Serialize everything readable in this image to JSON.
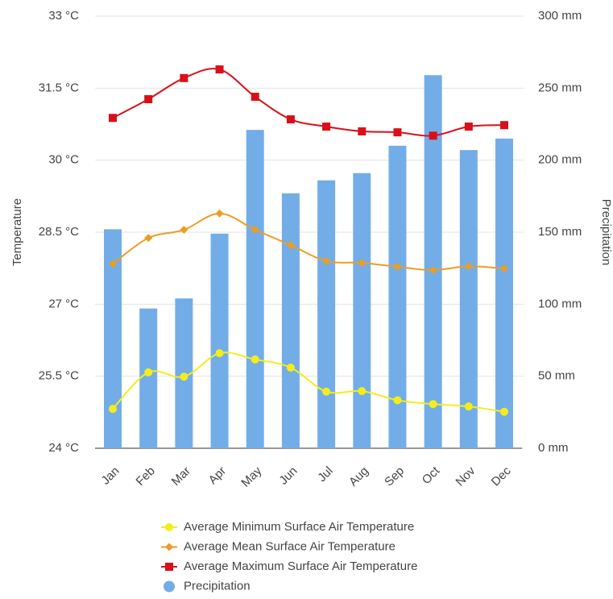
{
  "chart_data": {
    "type": "combo",
    "categories": [
      "Jan",
      "Feb",
      "Mar",
      "Apr",
      "May",
      "Jun",
      "Jul",
      "Aug",
      "Sep",
      "Oct",
      "Nov",
      "Dec"
    ],
    "y_label": "Temperature",
    "y2_label": "Precipitation",
    "ylim": [
      24,
      33
    ],
    "yticks": [
      {
        "value": 24,
        "label": "24 °C"
      },
      {
        "value": 25.5,
        "label": "25.5 °C"
      },
      {
        "value": 27,
        "label": "27 °C"
      },
      {
        "value": 28.5,
        "label": "28.5 °C"
      },
      {
        "value": 30,
        "label": "30 °C"
      },
      {
        "value": 31.5,
        "label": "31.5 °C"
      },
      {
        "value": 33,
        "label": "33 °C"
      }
    ],
    "y2lim": [
      0,
      300
    ],
    "y2ticks": [
      {
        "value": 0,
        "label": "0 mm"
      },
      {
        "value": 50,
        "label": "50 mm"
      },
      {
        "value": 100,
        "label": "100 mm"
      },
      {
        "value": 150,
        "label": "150 mm"
      },
      {
        "value": 200,
        "label": "200 mm"
      },
      {
        "value": 250,
        "label": "250 mm"
      },
      {
        "value": 300,
        "label": "300 mm"
      }
    ],
    "grid": true,
    "series": [
      {
        "name": "Average Minimum Surface Air Temperature",
        "type": "line",
        "marker": "circle",
        "color": "#f5ec1c",
        "values": [
          24.82,
          25.58,
          25.49,
          25.98,
          25.85,
          25.68,
          25.18,
          25.19,
          25.0,
          24.92,
          24.87,
          24.76
        ]
      },
      {
        "name": "Average Mean Surface Air Temperature",
        "type": "line",
        "marker": "diamond",
        "color": "#eb9d24",
        "values": [
          27.84,
          28.38,
          28.55,
          28.89,
          28.55,
          28.23,
          27.9,
          27.86,
          27.78,
          27.71,
          27.79,
          27.74
        ]
      },
      {
        "name": "Average Maximum Surface Air Temperature",
        "type": "line",
        "marker": "square",
        "color": "#d9101a",
        "values": [
          30.88,
          31.27,
          31.71,
          31.89,
          31.32,
          30.85,
          30.7,
          30.6,
          30.58,
          30.51,
          30.7,
          30.73
        ]
      },
      {
        "name": "Precipitation",
        "type": "bar",
        "axis": "y2",
        "marker": "circle",
        "color": "#73ade8",
        "values": [
          152,
          97,
          104,
          149,
          221,
          177,
          186,
          191,
          210,
          259,
          207,
          215
        ]
      }
    ]
  }
}
